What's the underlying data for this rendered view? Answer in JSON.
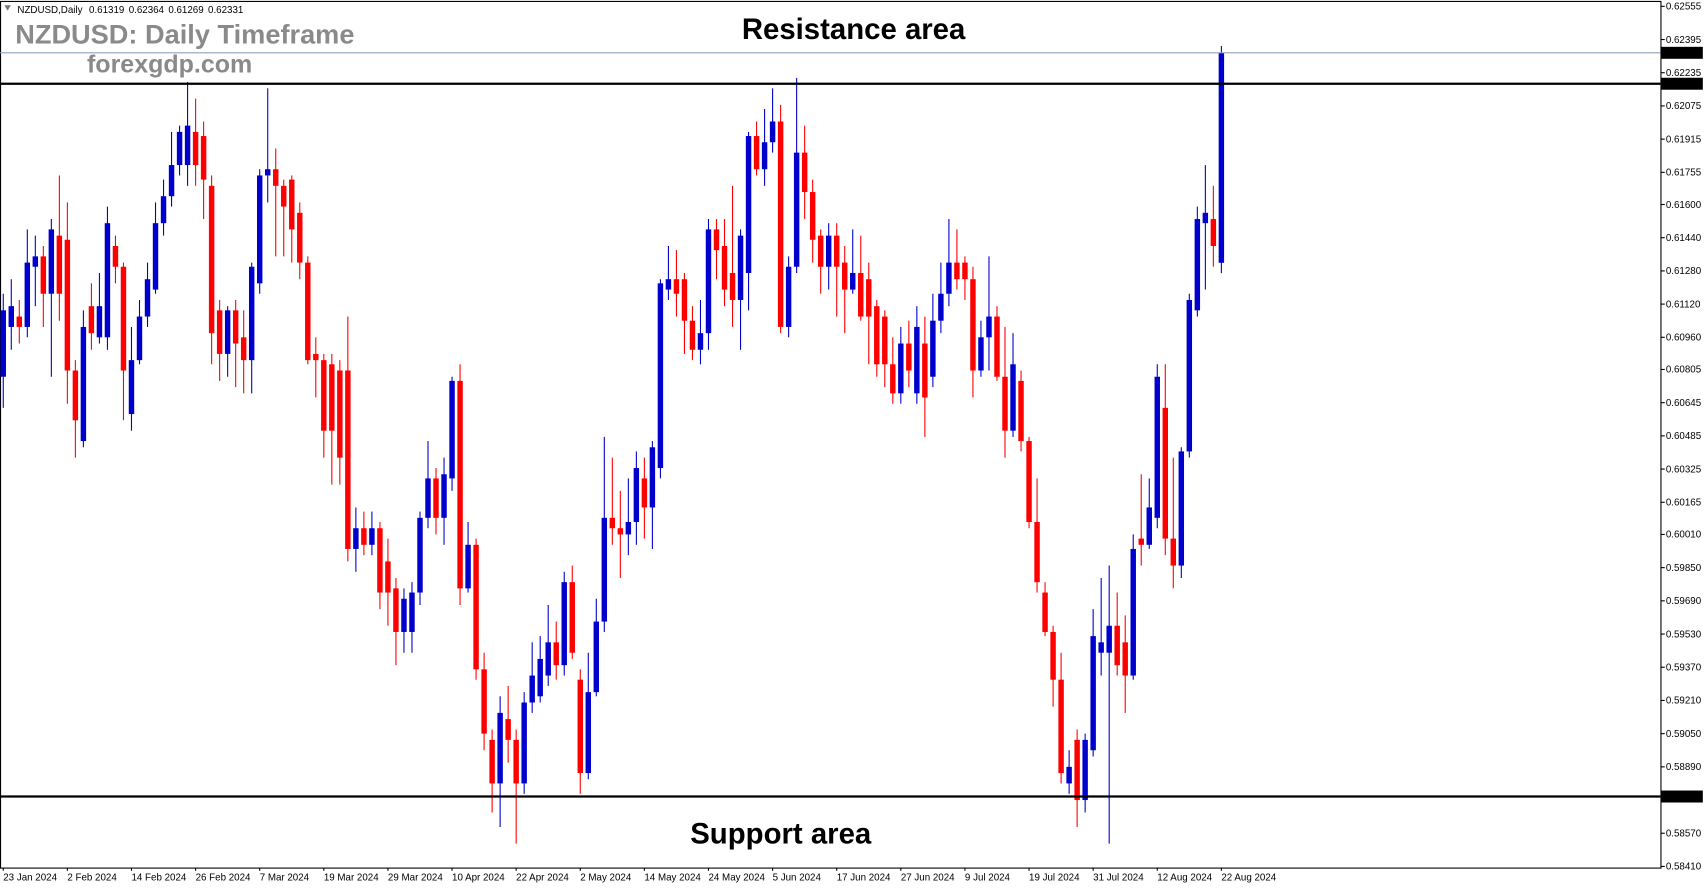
{
  "chart_data": {
    "type": "candlestick",
    "symbol": "NZDUSD,Daily",
    "title": "NZDUSD: Daily Timeframe",
    "subtitle": "forexgdp.com",
    "annotations": [
      "Resistance area",
      "Support area"
    ],
    "categories": [
      "23 Jan 2024",
      null,
      null,
      null,
      null,
      null,
      null,
      null,
      "2 Feb 2024",
      null,
      null,
      null,
      null,
      null,
      null,
      null,
      "14 Feb 2024",
      null,
      null,
      null,
      null,
      null,
      null,
      null,
      "26 Feb 2024",
      null,
      null,
      null,
      null,
      null,
      null,
      null,
      "7 Mar 2024",
      null,
      null,
      null,
      null,
      null,
      null,
      null,
      "19 Mar 2024",
      null,
      null,
      null,
      null,
      null,
      null,
      null,
      "29 Mar 2024",
      null,
      null,
      null,
      null,
      null,
      null,
      null,
      "10 Apr 2024",
      null,
      null,
      null,
      null,
      null,
      null,
      null,
      "22 Apr 2024",
      null,
      null,
      null,
      null,
      null,
      null,
      null,
      "2 May 2024",
      null,
      null,
      null,
      null,
      null,
      null,
      null,
      "14 May 2024",
      null,
      null,
      null,
      null,
      null,
      null,
      null,
      "24 May 2024",
      null,
      null,
      null,
      null,
      null,
      null,
      null,
      "5 Jun 2024",
      null,
      null,
      null,
      null,
      null,
      null,
      null,
      "17 Jun 2024",
      null,
      null,
      null,
      null,
      null,
      null,
      null,
      "27 Jun 2024",
      null,
      null,
      null,
      null,
      null,
      null,
      null,
      "9 Jul 2024",
      null,
      null,
      null,
      null,
      null,
      null,
      null,
      "19 Jul 2024",
      null,
      null,
      null,
      null,
      null,
      null,
      null,
      "31 Jul 2024",
      null,
      null,
      null,
      null,
      null,
      null,
      null,
      "12 Aug 2024",
      null,
      null,
      null,
      null,
      null,
      null,
      null,
      "22 Aug 2024"
    ],
    "open": [
      0.6077,
      0.6101,
      0.6106,
      0.6101,
      0.613,
      0.6135,
      0.6117,
      0.6145,
      0.6143,
      0.608,
      0.6046,
      0.6111,
      0.6096,
      0.6096,
      0.614,
      0.613,
      0.6059,
      0.6085,
      0.6106,
      0.6119,
      0.6151,
      0.6164,
      0.6179,
      0.6179,
      0.6195,
      0.6193,
      0.6169,
      0.6109,
      0.6088,
      0.6109,
      0.6096,
      0.6085,
      0.6122,
      0.6174,
      0.6177,
      0.6169,
      0.6172,
      0.6156,
      0.6132,
      0.6088,
      0.6085,
      0.6083,
      0.608,
      0.608,
      0.5994,
      0.6004,
      0.5996,
      0.6004,
      0.5988,
      0.5975,
      0.5954,
      0.5954,
      0.5973,
      0.6009,
      0.6028,
      0.6009,
      0.6028,
      0.6075,
      0.5975,
      0.5996,
      0.5936,
      0.5902,
      0.5881,
      0.5912,
      0.5902,
      0.5881,
      0.592,
      0.5923,
      0.5933,
      0.5949,
      0.5938,
      0.5978,
      0.5931,
      0.5886,
      0.5925,
      0.5959,
      0.6009,
      0.6004,
      0.6001,
      0.6007,
      0.6028,
      0.6014,
      0.6033,
      0.6119,
      0.6124,
      0.6124,
      0.6104,
      0.609,
      0.6098,
      0.6148,
      0.614,
      0.6127,
      0.6114,
      0.6127,
      0.6193,
      0.6177,
      0.619,
      0.62,
      0.6101,
      0.613,
      0.6185,
      0.6166,
      0.6145,
      0.613,
      0.6145,
      0.6132,
      0.6119,
      0.6127,
      0.6124,
      0.6111,
      0.6106,
      0.6083,
      0.6069,
      0.6093,
      0.6069,
      0.6093,
      0.6077,
      0.6104,
      0.6117,
      0.6132,
      0.6132,
      0.6124,
      0.608,
      0.6096,
      0.6106,
      0.6077,
      0.6051,
      0.6075,
      0.6046,
      0.6007,
      0.5973,
      0.5954,
      0.5931,
      0.5881,
      0.5902,
      0.5873,
      0.5897,
      0.5944,
      0.5944,
      0.5957,
      0.5949,
      0.5933,
      0.5999,
      0.5996,
      0.6009,
      0.6062,
      0.5999,
      0.5986,
      0.6041,
      0.6109,
      0.6151,
      0.6153,
      0.61319
    ],
    "high": [
      0.6117,
      0.6124,
      0.6114,
      0.6148,
      0.6145,
      0.614,
      0.6153,
      0.6174,
      0.6161,
      0.6085,
      0.6109,
      0.6122,
      0.6127,
      0.6159,
      0.6145,
      0.6132,
      0.6101,
      0.6114,
      0.6132,
      0.6161,
      0.6172,
      0.6195,
      0.6198,
      0.6219,
      0.6211,
      0.62,
      0.6174,
      0.6114,
      0.6111,
      0.6114,
      0.6109,
      0.6132,
      0.6177,
      0.6216,
      0.6187,
      0.6172,
      0.6174,
      0.6161,
      0.6135,
      0.6096,
      0.6088,
      0.6088,
      0.6085,
      0.6106,
      0.6014,
      0.6012,
      0.6012,
      0.6007,
      0.5999,
      0.598,
      0.5975,
      0.5978,
      0.6012,
      0.6046,
      0.6033,
      0.6038,
      0.6077,
      0.6083,
      0.6007,
      0.5999,
      0.5944,
      0.5907,
      0.5923,
      0.5928,
      0.5907,
      0.5925,
      0.5949,
      0.5952,
      0.5967,
      0.5959,
      0.5983,
      0.5986,
      0.5936,
      0.5944,
      0.597,
      0.6048,
      0.6038,
      0.6022,
      0.6028,
      0.6041,
      0.6038,
      0.6046,
      0.6124,
      0.614,
      0.6138,
      0.6127,
      0.6111,
      0.6114,
      0.6153,
      0.6153,
      0.6153,
      0.6169,
      0.6148,
      0.6195,
      0.62,
      0.6206,
      0.6216,
      0.6208,
      0.6135,
      0.6221,
      0.6198,
      0.6172,
      0.6148,
      0.6151,
      0.6151,
      0.614,
      0.6148,
      0.6145,
      0.6132,
      0.6114,
      0.6109,
      0.6096,
      0.6101,
      0.6104,
      0.6111,
      0.6106,
      0.6117,
      0.6132,
      0.6153,
      0.6148,
      0.6135,
      0.613,
      0.6104,
      0.6135,
      0.6111,
      0.6101,
      0.6098,
      0.608,
      0.6048,
      0.6028,
      0.5978,
      0.5957,
      0.5944,
      0.5897,
      0.5907,
      0.5905,
      0.5965,
      0.598,
      0.5986,
      0.5973,
      0.5962,
      0.6001,
      0.603,
      0.6028,
      0.6083,
      0.6083,
      0.6038,
      0.6043,
      0.6117,
      0.6159,
      0.6179,
      0.6169,
      0.62364
    ],
    "low": [
      0.6062,
      0.609,
      0.6093,
      0.6096,
      0.6111,
      0.6101,
      0.6077,
      0.6104,
      0.6064,
      0.6038,
      0.6043,
      0.609,
      0.6093,
      0.609,
      0.6122,
      0.6056,
      0.6051,
      0.6083,
      0.6101,
      0.6117,
      0.6145,
      0.6159,
      0.6174,
      0.6169,
      0.6169,
      0.6153,
      0.6083,
      0.6075,
      0.6077,
      0.6072,
      0.6069,
      0.6069,
      0.6117,
      0.6161,
      0.6135,
      0.6135,
      0.6132,
      0.6124,
      0.6083,
      0.6067,
      0.6038,
      0.6025,
      0.6025,
      0.5988,
      0.5983,
      0.5991,
      0.5991,
      0.5965,
      0.5957,
      0.5938,
      0.5944,
      0.5944,
      0.5967,
      0.6004,
      0.6001,
      0.5996,
      0.6022,
      0.5967,
      0.5973,
      0.5931,
      0.5897,
      0.5867,
      0.586,
      0.5891,
      0.5852,
      0.5876,
      0.5915,
      0.592,
      0.5928,
      0.5931,
      0.5933,
      0.5941,
      0.5876,
      0.5883,
      0.5923,
      0.5954,
      0.5996,
      0.598,
      0.5991,
      0.5996,
      0.5999,
      0.5994,
      0.6028,
      0.6114,
      0.6106,
      0.6088,
      0.6085,
      0.6083,
      0.609,
      0.6124,
      0.6111,
      0.6101,
      0.609,
      0.6109,
      0.6174,
      0.6169,
      0.6185,
      0.6098,
      0.6096,
      0.6127,
      0.6153,
      0.6132,
      0.6117,
      0.6119,
      0.6106,
      0.6098,
      0.6117,
      0.6104,
      0.6083,
      0.6077,
      0.6072,
      0.6064,
      0.6064,
      0.6072,
      0.6064,
      0.6048,
      0.6072,
      0.6098,
      0.6111,
      0.6119,
      0.6114,
      0.6067,
      0.6077,
      0.608,
      0.6075,
      0.6038,
      0.6048,
      0.6041,
      0.6004,
      0.5973,
      0.5952,
      0.5918,
      0.5881,
      0.5876,
      0.586,
      0.5867,
      0.5894,
      0.5933,
      0.5852,
      0.5933,
      0.5915,
      0.5931,
      0.5986,
      0.5994,
      0.6004,
      0.5991,
      0.5975,
      0.598,
      0.6038,
      0.6106,
      0.6119,
      0.613,
      0.61269
    ],
    "close": [
      0.6109,
      0.6111,
      0.6101,
      0.6132,
      0.6135,
      0.6117,
      0.6148,
      0.6117,
      0.608,
      0.6056,
      0.6101,
      0.6098,
      0.6111,
      0.6151,
      0.613,
      0.608,
      0.6085,
      0.6106,
      0.6124,
      0.6151,
      0.6164,
      0.6179,
      0.6195,
      0.6198,
      0.6179,
      0.6172,
      0.6098,
      0.6088,
      0.6109,
      0.6093,
      0.6085,
      0.613,
      0.6174,
      0.6177,
      0.6169,
      0.6159,
      0.6148,
      0.6132,
      0.6085,
      0.6085,
      0.6051,
      0.6051,
      0.6038,
      0.5994,
      0.6004,
      0.5996,
      0.6004,
      0.5973,
      0.5973,
      0.5954,
      0.597,
      0.5973,
      0.6009,
      0.6028,
      0.6009,
      0.603,
      0.6075,
      0.5975,
      0.5996,
      0.5936,
      0.5905,
      0.5881,
      0.5915,
      0.5902,
      0.5881,
      0.592,
      0.5933,
      0.5941,
      0.5949,
      0.5938,
      0.5978,
      0.5944,
      0.5886,
      0.5925,
      0.5959,
      0.6009,
      0.6004,
      0.6001,
      0.6007,
      0.6033,
      0.6014,
      0.6043,
      0.6122,
      0.6124,
      0.6117,
      0.6104,
      0.609,
      0.6098,
      0.6148,
      0.6138,
      0.6119,
      0.6114,
      0.6145,
      0.6193,
      0.6177,
      0.619,
      0.62,
      0.6101,
      0.613,
      0.6185,
      0.6166,
      0.6143,
      0.613,
      0.6145,
      0.613,
      0.6119,
      0.6127,
      0.6106,
      0.6106,
      0.6083,
      0.6083,
      0.6069,
      0.6093,
      0.608,
      0.6101,
      0.6067,
      0.6104,
      0.6117,
      0.6132,
      0.6124,
      0.6124,
      0.608,
      0.6096,
      0.6106,
      0.6077,
      0.6051,
      0.6083,
      0.6046,
      0.6007,
      0.5978,
      0.5954,
      0.5931,
      0.5886,
      0.5889,
      0.5873,
      0.5902,
      0.5952,
      0.5949,
      0.5957,
      0.5938,
      0.5933,
      0.5994,
      0.5996,
      0.6014,
      0.6077,
      0.5999,
      0.5986,
      0.6041,
      0.6114,
      0.6153,
      0.6156,
      0.614,
      0.62331
    ],
    "up_color": "#0000cc",
    "down_color": "#ff0000",
    "levels": [
      0.62182,
      0.58747
    ],
    "level_color": "#000000",
    "ylim": [
      0.5841,
      0.62555
    ],
    "yticks": [
      0.62555,
      0.62395,
      0.62235,
      0.62075,
      0.61915,
      0.61755,
      {
        "value": 0.616,
        "label": "0.61600"
      },
      {
        "value": 0.6144,
        "label": "0.61440"
      },
      {
        "value": 0.6128,
        "label": "0.61280"
      },
      {
        "value": 0.6112,
        "label": "0.61120"
      },
      {
        "value": 0.6096,
        "label": "0.60960"
      },
      0.60805,
      0.60645,
      0.60485,
      0.60325,
      0.60165,
      {
        "value": 0.6001,
        "label": "0.60010"
      },
      {
        "value": 0.5985,
        "label": "0.59850"
      },
      {
        "value": 0.5969,
        "label": "0.59690"
      },
      {
        "value": 0.5953,
        "label": "0.59530"
      },
      {
        "value": 0.5937,
        "label": "0.59370"
      },
      {
        "value": 0.5921,
        "label": "0.59210"
      },
      {
        "value": 0.5905,
        "label": "0.59050"
      },
      {
        "value": 0.5889,
        "label": "0.58890"
      },
      {
        "value": 0.5857,
        "label": "0.58570"
      },
      {
        "value": 0.5841,
        "label": "0.58410"
      }
    ],
    "grid": false
  }
}
